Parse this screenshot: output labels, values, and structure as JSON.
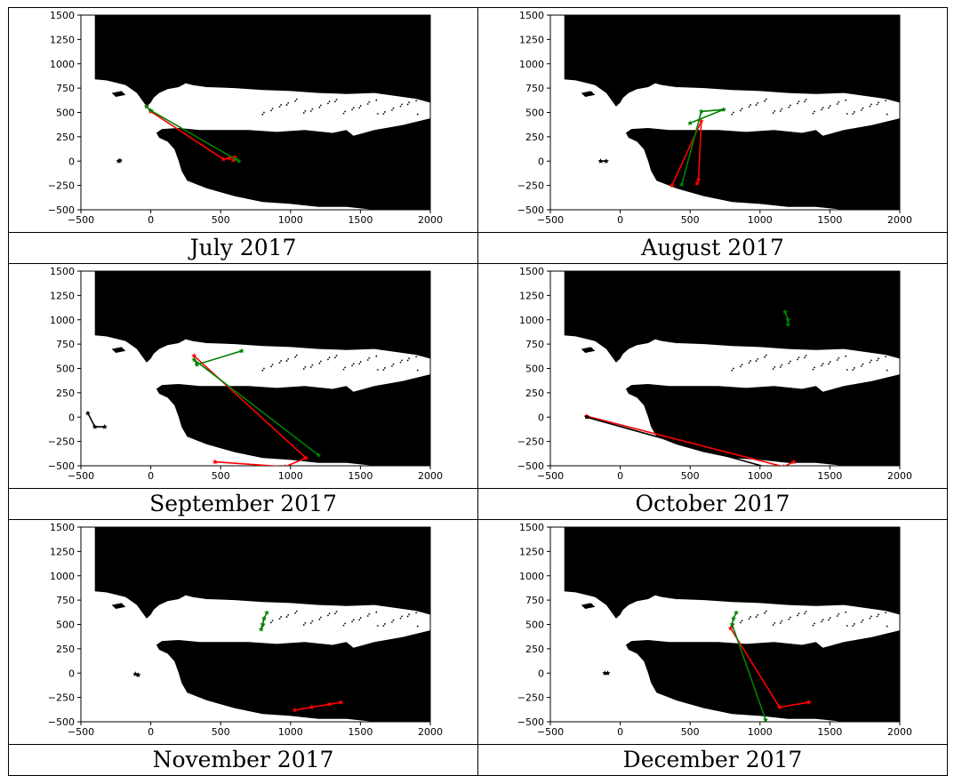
{
  "colors": {
    "land": "#000000",
    "water": "#ffffff",
    "red": "#ff0000",
    "green": "#008000",
    "black": "#000000"
  },
  "chart_data": [
    {
      "type": "line",
      "title": "July 2017",
      "xlim": [
        -500,
        2000
      ],
      "ylim": [
        -500,
        1500
      ],
      "xticks": [
        -500,
        0,
        500,
        1000,
        1500,
        2000
      ],
      "yticks": [
        1500,
        1250,
        1000,
        750,
        500,
        250,
        0,
        -250,
        -500
      ],
      "grid": false,
      "series": [
        {
          "color": "red",
          "marker": "*",
          "points": [
            [
              -30,
              560
            ],
            [
              0,
              510
            ],
            [
              520,
              20
            ],
            [
              560,
              30
            ],
            [
              600,
              40
            ],
            [
              590,
              10
            ]
          ]
        },
        {
          "color": "green",
          "marker": "*",
          "points": [
            [
              -30,
              560
            ],
            [
              0,
              520
            ],
            [
              630,
              0
            ],
            [
              610,
              20
            ]
          ]
        },
        {
          "color": "black",
          "marker": "*",
          "points": [
            [
              -230,
              0
            ],
            [
              -220,
              5
            ]
          ]
        }
      ]
    },
    {
      "type": "line",
      "title": "August 2017",
      "xlim": [
        -500,
        2000
      ],
      "ylim": [
        -500,
        1500
      ],
      "xticks": [
        -500,
        0,
        500,
        1000,
        1500,
        2000
      ],
      "yticks": [
        1500,
        1250,
        1000,
        750,
        500,
        250,
        0,
        -250,
        -500
      ],
      "grid": false,
      "series": [
        {
          "color": "red",
          "marker": "*",
          "points": [
            [
              370,
              -250
            ],
            [
              580,
              410
            ],
            [
              560,
              -190
            ],
            [
              550,
              -230
            ]
          ]
        },
        {
          "color": "green",
          "marker": "*",
          "points": [
            [
              440,
              -240
            ],
            [
              580,
              510
            ],
            [
              740,
              530
            ],
            [
              500,
              390
            ]
          ]
        },
        {
          "color": "black",
          "marker": "*",
          "points": [
            [
              -140,
              0
            ],
            [
              -100,
              0
            ]
          ]
        }
      ]
    },
    {
      "type": "line",
      "title": "September 2017",
      "xlim": [
        -500,
        2000
      ],
      "ylim": [
        -500,
        1500
      ],
      "xticks": [
        -500,
        0,
        500,
        1000,
        1500,
        2000
      ],
      "yticks": [
        1500,
        1250,
        1000,
        750,
        500,
        250,
        0,
        -250,
        -500
      ],
      "grid": false,
      "series": [
        {
          "color": "red",
          "marker": "*",
          "points": [
            [
              310,
              630
            ],
            [
              1110,
              -420
            ],
            [
              960,
              -510
            ],
            [
              460,
              -460
            ]
          ]
        },
        {
          "color": "green",
          "marker": "*",
          "points": [
            [
              650,
              680
            ],
            [
              330,
              540
            ],
            [
              310,
              590
            ],
            [
              1200,
              -390
            ]
          ]
        },
        {
          "color": "black",
          "marker": "*",
          "points": [
            [
              -450,
              40
            ],
            [
              -400,
              -100
            ],
            [
              -330,
              -100
            ]
          ]
        }
      ]
    },
    {
      "type": "line",
      "title": "October 2017",
      "xlim": [
        -500,
        2000
      ],
      "ylim": [
        -500,
        1500
      ],
      "xticks": [
        -500,
        0,
        500,
        1000,
        1500,
        2000
      ],
      "yticks": [
        1500,
        1250,
        1000,
        750,
        500,
        250,
        0,
        -250,
        -500
      ],
      "grid": false,
      "series": [
        {
          "color": "red",
          "marker": "*",
          "points": [
            [
              -240,
              10
            ],
            [
              1170,
              -510
            ],
            [
              1240,
              -460
            ]
          ]
        },
        {
          "color": "green",
          "marker": "*",
          "points": [
            [
              1180,
              1080
            ],
            [
              1200,
              1000
            ],
            [
              1200,
              950
            ]
          ]
        },
        {
          "color": "black",
          "marker": "*",
          "points": [
            [
              -240,
              0
            ],
            [
              1160,
              -560
            ],
            [
              1190,
              -520
            ]
          ]
        }
      ]
    },
    {
      "type": "line",
      "title": "November 2017",
      "xlim": [
        -500,
        2000
      ],
      "ylim": [
        -500,
        1500
      ],
      "xticks": [
        -500,
        0,
        500,
        1000,
        1500,
        2000
      ],
      "yticks": [
        1500,
        1250,
        1000,
        750,
        500,
        250,
        0,
        -250,
        -500
      ],
      "grid": false,
      "series": [
        {
          "color": "red",
          "marker": "*",
          "points": [
            [
              1030,
              -380
            ],
            [
              1150,
              -350
            ],
            [
              1280,
              -320
            ],
            [
              1360,
              -300
            ]
          ]
        },
        {
          "color": "green",
          "marker": "*",
          "points": [
            [
              830,
              620
            ],
            [
              810,
              560
            ],
            [
              800,
              500
            ],
            [
              790,
              450
            ]
          ]
        },
        {
          "color": "black",
          "marker": "*",
          "points": [
            [
              -110,
              -10
            ],
            [
              -90,
              -20
            ]
          ]
        }
      ]
    },
    {
      "type": "line",
      "title": "December 2017",
      "xlim": [
        -500,
        2000
      ],
      "ylim": [
        -500,
        1500
      ],
      "xticks": [
        -500,
        0,
        500,
        1000,
        1500,
        2000
      ],
      "yticks": [
        1500,
        1250,
        1000,
        750,
        500,
        250,
        0,
        -250,
        -500
      ],
      "grid": false,
      "series": [
        {
          "color": "red",
          "marker": "*",
          "points": [
            [
              790,
              460
            ],
            [
              1140,
              -350
            ],
            [
              1350,
              -300
            ]
          ]
        },
        {
          "color": "green",
          "marker": "*",
          "points": [
            [
              830,
              620
            ],
            [
              810,
              560
            ],
            [
              800,
              500
            ],
            [
              1040,
              -480
            ]
          ]
        },
        {
          "color": "black",
          "marker": "*",
          "points": [
            [
              -110,
              0
            ],
            [
              -90,
              0
            ]
          ]
        }
      ]
    }
  ]
}
